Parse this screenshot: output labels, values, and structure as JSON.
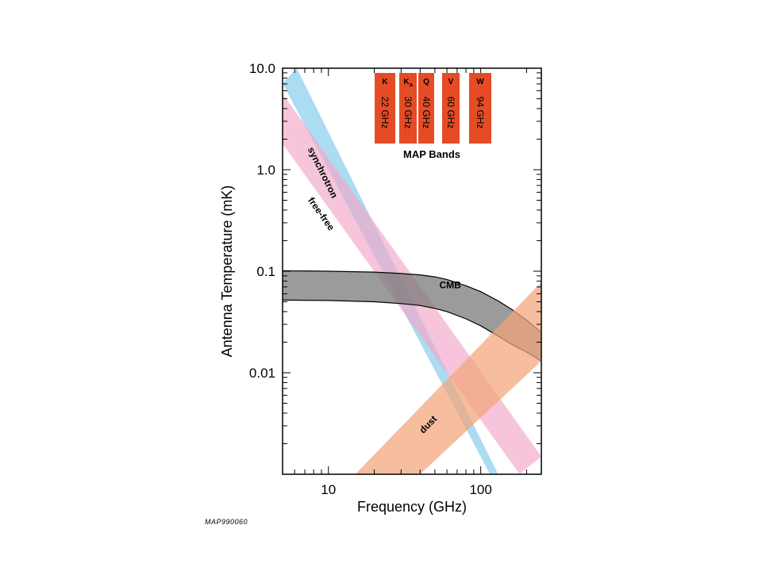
{
  "footer_code": "MAP990060",
  "chart_data": {
    "type": "area",
    "xlabel": "Frequency (GHz)",
    "ylabel": "Antenna Temperature (mK)",
    "xscale": "log",
    "yscale": "log",
    "xlim": [
      5,
      250
    ],
    "ylim": [
      0.001,
      10
    ],
    "xticks": [
      {
        "value": 10,
        "label": "10"
      },
      {
        "value": 100,
        "label": "100"
      }
    ],
    "yticks": [
      {
        "value": 0.01,
        "label": "0.01"
      },
      {
        "value": 0.1,
        "label": "0.1"
      },
      {
        "value": 1,
        "label": "1.0"
      },
      {
        "value": 10,
        "label": "10.0"
      }
    ],
    "series": [
      {
        "name": "synchrotron",
        "kind": "band",
        "color": "#8fd0ee",
        "lower": [
          {
            "x": 5,
            "y": 7.1
          },
          {
            "x": 115,
            "y": 0.001
          }
        ],
        "upper": [
          {
            "x": 6.2,
            "y": 10
          },
          {
            "x": 130,
            "y": 0.001
          }
        ],
        "label_at": {
          "x": 7.3,
          "y": 1.6
        }
      },
      {
        "name": "free-free",
        "kind": "band",
        "color": "#f2a6c8",
        "lower": [
          {
            "x": 5,
            "y": 1.8
          },
          {
            "x": 180,
            "y": 0.001
          }
        ],
        "upper": [
          {
            "x": 5,
            "y": 5.6
          },
          {
            "x": 250,
            "y": 0.0015
          }
        ],
        "label_at": {
          "x": 7.3,
          "y": 0.5
        }
      },
      {
        "name": "CMB",
        "kind": "band",
        "color": "#7a7a7a",
        "lower": [
          {
            "x": 5,
            "y": 0.052
          },
          {
            "x": 10,
            "y": 0.0515
          },
          {
            "x": 20,
            "y": 0.05
          },
          {
            "x": 30,
            "y": 0.048
          },
          {
            "x": 40,
            "y": 0.046
          },
          {
            "x": 50,
            "y": 0.043
          },
          {
            "x": 60,
            "y": 0.04
          },
          {
            "x": 80,
            "y": 0.034
          },
          {
            "x": 100,
            "y": 0.029
          },
          {
            "x": 130,
            "y": 0.023
          },
          {
            "x": 160,
            "y": 0.019
          },
          {
            "x": 200,
            "y": 0.016
          },
          {
            "x": 250,
            "y": 0.013
          }
        ],
        "upper": [
          {
            "x": 5,
            "y": 0.101
          },
          {
            "x": 10,
            "y": 0.1
          },
          {
            "x": 20,
            "y": 0.098
          },
          {
            "x": 30,
            "y": 0.095
          },
          {
            "x": 40,
            "y": 0.092
          },
          {
            "x": 50,
            "y": 0.088
          },
          {
            "x": 60,
            "y": 0.083
          },
          {
            "x": 80,
            "y": 0.072
          },
          {
            "x": 100,
            "y": 0.063
          },
          {
            "x": 130,
            "y": 0.051
          },
          {
            "x": 160,
            "y": 0.042
          },
          {
            "x": 200,
            "y": 0.033
          },
          {
            "x": 250,
            "y": 0.025
          }
        ],
        "label_at": {
          "x": 63,
          "y": 0.068
        }
      },
      {
        "name": "dust",
        "kind": "band",
        "color": "#f3a57a",
        "lower": [
          {
            "x": 40,
            "y": 0.001
          },
          {
            "x": 250,
            "y": 0.013
          }
        ],
        "upper": [
          {
            "x": 15,
            "y": 0.001
          },
          {
            "x": 250,
            "y": 0.078
          }
        ],
        "label_at": {
          "x": 42,
          "y": 0.0025
        }
      }
    ],
    "inset": {
      "title": "MAP Bands",
      "color": "#e54c25",
      "bands": [
        {
          "letter": "K",
          "subscript": "",
          "frequency": "22 GHz"
        },
        {
          "letter": "K",
          "subscript": "a",
          "frequency": "30 GHz"
        },
        {
          "letter": "Q",
          "subscript": "",
          "frequency": "40 GHz"
        },
        {
          "letter": "V",
          "subscript": "",
          "frequency": "60 GHz"
        },
        {
          "letter": "W",
          "subscript": "",
          "frequency": "94 GHz"
        }
      ]
    }
  }
}
